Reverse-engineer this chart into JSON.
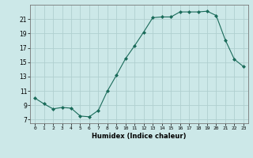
{
  "x": [
    0,
    1,
    2,
    3,
    4,
    5,
    6,
    7,
    8,
    9,
    10,
    11,
    12,
    13,
    14,
    15,
    16,
    17,
    18,
    19,
    20,
    21,
    22,
    23
  ],
  "y": [
    10.0,
    9.2,
    8.5,
    8.7,
    8.6,
    7.5,
    7.4,
    8.3,
    11.0,
    13.2,
    15.5,
    17.3,
    19.2,
    21.2,
    21.3,
    21.3,
    22.0,
    22.0,
    22.0,
    22.1,
    21.5,
    18.1,
    15.4,
    14.4
  ],
  "line_color": "#1a6b5a",
  "marker": "D",
  "marker_size": 2.0,
  "bg_color": "#cce8e8",
  "grid_color": "#b0cfcf",
  "xlabel": "Humidex (Indice chaleur)",
  "xlim": [
    -0.5,
    23.5
  ],
  "ylim": [
    6.5,
    23.0
  ],
  "yticks": [
    7,
    9,
    11,
    13,
    15,
    17,
    19,
    21
  ],
  "xticks": [
    0,
    1,
    2,
    3,
    4,
    5,
    6,
    7,
    8,
    9,
    10,
    11,
    12,
    13,
    14,
    15,
    16,
    17,
    18,
    19,
    20,
    21,
    22,
    23
  ]
}
